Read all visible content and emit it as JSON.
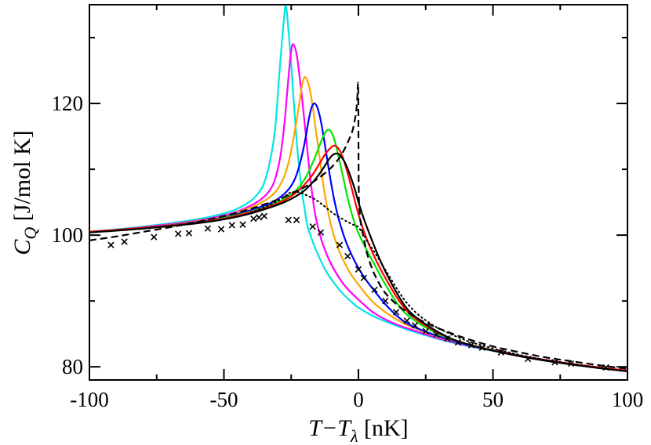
{
  "chart_data": {
    "type": "line",
    "title": "",
    "xlabel": {
      "main": "T−T",
      "sub": "λ",
      "unit": " [nK]"
    },
    "ylabel": {
      "main": "C",
      "sub": "Q",
      "unit": " [J/mol K]"
    },
    "xlim": [
      -100,
      100
    ],
    "ylim": [
      78,
      135
    ],
    "x_ticks": [
      -100,
      -50,
      0,
      50,
      100
    ],
    "x_tick_labels": [
      "-100",
      "-50",
      "0",
      "50",
      "100"
    ],
    "y_ticks": [
      80,
      100,
      120
    ],
    "y_tick_labels": [
      "80",
      "100",
      "120"
    ],
    "grid": false,
    "series": [
      {
        "name": "cyan",
        "color": "#00e5e5",
        "style": "solid",
        "x": [
          -100,
          -80,
          -60,
          -50,
          -45,
          -40,
          -37,
          -35,
          -33,
          -31,
          -29.5,
          -28,
          -27,
          -26,
          -25,
          -24,
          -23,
          -22,
          -21,
          -20,
          -19,
          -17,
          -15,
          -12,
          -9,
          -6,
          -3,
          0,
          5,
          10,
          15,
          20,
          30,
          40,
          60,
          80,
          100
        ],
        "y": [
          100.5,
          101.3,
          102.4,
          103.3,
          104,
          105.2,
          106.5,
          108,
          111,
          116,
          124,
          131.5,
          134.8,
          131,
          126,
          120,
          114.5,
          110,
          106.5,
          104,
          101.5,
          99,
          97,
          94.5,
          92.7,
          91.2,
          90,
          89,
          87.8,
          86.9,
          86.1,
          85.4,
          84.2,
          83.2,
          81.7,
          80.4,
          79.4
        ]
      },
      {
        "name": "magenta",
        "color": "#ff00ff",
        "style": "solid",
        "x": [
          -100,
          -80,
          -60,
          -50,
          -45,
          -40,
          -36,
          -33,
          -31,
          -29,
          -27.5,
          -26,
          -25,
          -24.2,
          -23,
          -22,
          -21,
          -20,
          -19,
          -18,
          -17,
          -16,
          -14,
          -12,
          -10,
          -7,
          -4,
          0,
          5,
          10,
          15,
          20,
          30,
          40,
          60,
          80,
          100
        ],
        "y": [
          100.5,
          101.2,
          102.2,
          103,
          103.6,
          104.5,
          105.5,
          106.8,
          108.5,
          112,
          117,
          124,
          128,
          129,
          127.5,
          124.5,
          121,
          117,
          113,
          109,
          105.7,
          103,
          99.6,
          97.3,
          95.5,
          93.4,
          91.8,
          90.2,
          88.4,
          87.2,
          86.3,
          85.6,
          84.3,
          83.3,
          81.7,
          80.4,
          79.4
        ]
      },
      {
        "name": "orange",
        "color": "#ffa500",
        "style": "solid",
        "x": [
          -100,
          -80,
          -60,
          -50,
          -40,
          -35,
          -31,
          -28,
          -26,
          -24,
          -22,
          -21,
          -20,
          -19,
          -18,
          -17,
          -16,
          -15,
          -14,
          -13,
          -12,
          -11,
          -10,
          -8,
          -6,
          -3,
          0,
          5,
          10,
          15,
          20,
          30,
          40,
          60,
          80,
          100
        ],
        "y": [
          100.5,
          101.1,
          102.1,
          102.8,
          104.2,
          105.2,
          106.5,
          108.5,
          111,
          115,
          120,
          122.7,
          124,
          123.5,
          122,
          119.5,
          116.5,
          113.5,
          110.5,
          107.5,
          105,
          103,
          101.2,
          98.5,
          96.5,
          94.2,
          92.5,
          90,
          88.3,
          87,
          86,
          84.5,
          83.4,
          81.7,
          80.4,
          79.4
        ]
      },
      {
        "name": "blue",
        "color": "#0000ff",
        "style": "solid",
        "x": [
          -100,
          -80,
          -60,
          -50,
          -40,
          -32,
          -27,
          -24,
          -22,
          -20,
          -18.5,
          -17.5,
          -16.5,
          -15.5,
          -14.5,
          -13.5,
          -12.5,
          -11.5,
          -10.5,
          -9.5,
          -8.5,
          -7.5,
          -6.5,
          -5,
          -3,
          0,
          3,
          6,
          10,
          15,
          20,
          30,
          40,
          60,
          80,
          100
        ],
        "y": [
          100.5,
          101.1,
          102,
          102.7,
          103.8,
          105,
          106.5,
          108.2,
          110.5,
          114,
          117.5,
          119.3,
          120,
          119.6,
          118.3,
          116.3,
          113.8,
          111.2,
          108.7,
          106.4,
          104.4,
          102.7,
          101.3,
          99.4,
          97.4,
          95,
          93.1,
          91.5,
          89.5,
          87.5,
          86.2,
          84.6,
          83.4,
          81.7,
          80.4,
          79.4
        ]
      },
      {
        "name": "green",
        "color": "#00e500",
        "style": "solid",
        "x": [
          -100,
          -80,
          -60,
          -50,
          -40,
          -30,
          -24,
          -20,
          -17,
          -15,
          -13.5,
          -12,
          -11,
          -10,
          -9,
          -8,
          -7,
          -6,
          -5,
          -4,
          -3,
          -2,
          0,
          3,
          6,
          10,
          15,
          20,
          30,
          40,
          60,
          80,
          100
        ],
        "y": [
          100.5,
          101.1,
          101.9,
          102.6,
          103.6,
          105,
          106.5,
          108.5,
          111,
          113,
          114.6,
          115.8,
          116,
          115.6,
          114.6,
          113,
          111.2,
          109.4,
          107.5,
          105.6,
          104,
          102.6,
          100.3,
          97.8,
          95.5,
          92.5,
          89.3,
          87.3,
          84.9,
          83.5,
          81.7,
          80.4,
          79.4
        ]
      },
      {
        "name": "red",
        "color": "#ff0000",
        "style": "solid",
        "x": [
          -100,
          -80,
          -60,
          -50,
          -40,
          -30,
          -24,
          -20,
          -17,
          -14,
          -12,
          -10,
          -9,
          -8,
          -7,
          -6,
          -5,
          -4,
          -3,
          -2,
          -1,
          0,
          2,
          4,
          7,
          10,
          15,
          20,
          30,
          40,
          60,
          80,
          100
        ],
        "y": [
          100.5,
          101.1,
          101.9,
          102.5,
          103.5,
          104.8,
          106.2,
          107.7,
          109.2,
          111.2,
          112.5,
          113.4,
          113.6,
          113.4,
          112.9,
          112,
          110.8,
          109.4,
          107.9,
          106.3,
          104.7,
          103.2,
          100.6,
          98.5,
          95.8,
          93.5,
          90.1,
          87.7,
          85.1,
          83.5,
          81.7,
          80.4,
          79.4
        ]
      },
      {
        "name": "black-solid",
        "color": "#000000",
        "style": "solid",
        "x": [
          -100,
          -80,
          -60,
          -50,
          -40,
          -30,
          -25,
          -20,
          -16,
          -13,
          -11,
          -9.5,
          -8,
          -7,
          -6,
          -5,
          -4,
          -3,
          -2,
          -1,
          0,
          2,
          4,
          7,
          10,
          15,
          20,
          30,
          40,
          60,
          80,
          100
        ],
        "y": [
          100.4,
          101,
          101.8,
          102.4,
          103.3,
          104.6,
          105.5,
          106.8,
          108.5,
          110.2,
          111.5,
          112.2,
          112.4,
          112.2,
          111.7,
          111,
          110.1,
          109,
          107.8,
          106.5,
          105,
          102.5,
          100.3,
          97.2,
          94.5,
          90.7,
          88,
          85.2,
          83.5,
          81.6,
          80.3,
          79.3
        ]
      },
      {
        "name": "black-dashed",
        "color": "#000000",
        "style": "dashed",
        "x": [
          -100,
          -90,
          -80,
          -70,
          -60,
          -50,
          -40,
          -30,
          -25,
          -20,
          -15,
          -10,
          -7,
          -5,
          -3,
          -2,
          -1,
          -0.5,
          -0.1,
          0.1,
          0.5,
          1,
          2,
          3,
          5,
          7,
          10,
          15,
          20,
          25,
          30,
          40,
          50,
          60,
          70,
          80,
          90,
          100
        ],
        "y": [
          99.2,
          99.8,
          100.5,
          101.2,
          102,
          102.9,
          104,
          105.4,
          106.3,
          107.3,
          108.6,
          110.3,
          111.8,
          113.2,
          115,
          116.2,
          118.3,
          120.2,
          122.5,
          107.5,
          103.2,
          101.5,
          99.5,
          97.5,
          95,
          93.2,
          91.2,
          89.2,
          87.8,
          86.7,
          85.8,
          84.3,
          83.1,
          82.2,
          81.4,
          80.8,
          80.2,
          79.7
        ]
      },
      {
        "name": "black-dotted",
        "color": "#000000",
        "style": "dotted",
        "x": [
          -40,
          -34,
          -30,
          -27,
          -25,
          -22,
          -19,
          -16,
          -13,
          -10,
          -7,
          -4,
          -2,
          -1,
          0,
          2,
          4,
          6,
          9,
          12,
          15,
          18,
          22,
          26,
          30,
          40,
          50,
          60,
          70,
          80,
          90,
          100
        ],
        "y": [
          103.4,
          104.4,
          105.2,
          106,
          106.5,
          106.5,
          106,
          105.4,
          104.5,
          103.5,
          102.7,
          102,
          101.6,
          101.4,
          101.2,
          100,
          98.6,
          97.4,
          95.4,
          93.4,
          91.4,
          89.7,
          88,
          86.8,
          85.8,
          84,
          82.8,
          81.8,
          81,
          80.4,
          79.8,
          79.3
        ]
      },
      {
        "name": "experimental",
        "color": "#000000",
        "style": "x-markers",
        "x": [
          -92,
          -87,
          -76,
          -67,
          -63,
          -56,
          -51,
          -47,
          -43,
          -39,
          -37,
          -35,
          -26,
          -23,
          -17,
          -14,
          -7,
          -4,
          0,
          2,
          6,
          10,
          14,
          18,
          21,
          25,
          29,
          33,
          37,
          42,
          46,
          53,
          63,
          73,
          79,
          92
        ],
        "y": [
          98.5,
          99,
          99.7,
          100.2,
          100.3,
          101,
          100.9,
          101.5,
          101.6,
          102.5,
          102.7,
          102.9,
          102.3,
          102.3,
          101.3,
          100.4,
          98.5,
          96.8,
          94.8,
          93.5,
          91.7,
          90,
          88.3,
          87,
          86.3,
          85.4,
          84.9,
          84.3,
          83.7,
          83.3,
          82.9,
          82.2,
          81.2,
          80.7,
          80.5,
          79.9
        ]
      }
    ]
  }
}
